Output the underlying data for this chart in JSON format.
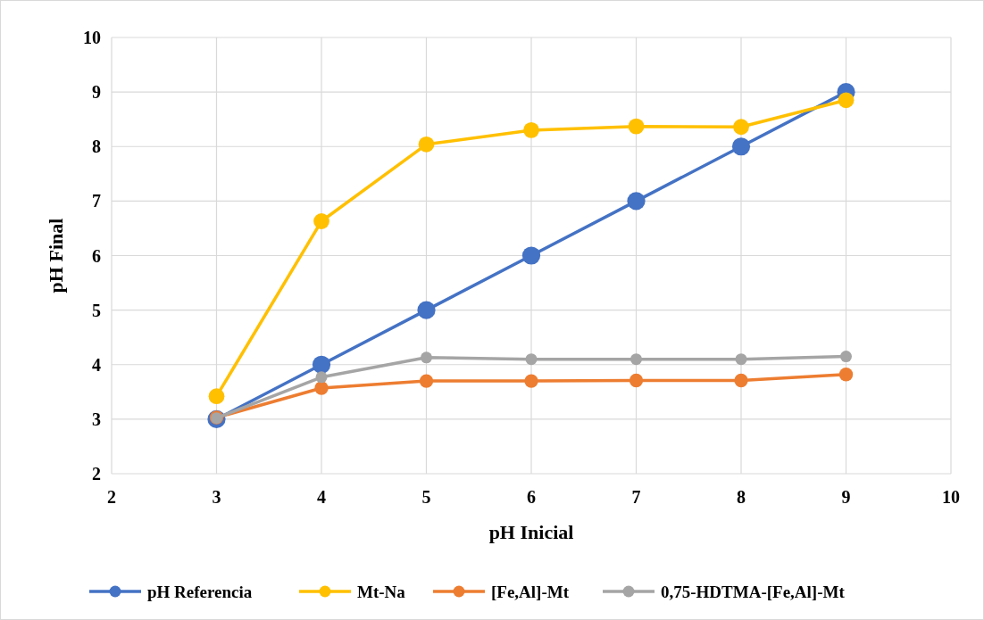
{
  "chart_data": {
    "type": "line",
    "xlabel": "pH Inicial",
    "ylabel": "pH Final",
    "x": [
      3,
      4,
      5,
      6,
      7,
      8,
      9
    ],
    "xlim": [
      2,
      10
    ],
    "xticks": [
      2,
      3,
      4,
      5,
      6,
      7,
      8,
      9,
      10
    ],
    "ylim": [
      2,
      10
    ],
    "yticks": [
      2,
      3,
      4,
      5,
      6,
      7,
      8,
      9,
      10
    ],
    "grid": true,
    "legend": "bottom",
    "marker": "circle",
    "line_style": "solid",
    "series": [
      {
        "name": "pH Referencia",
        "color": "#4472c4",
        "values": [
          3,
          4,
          5,
          6,
          7,
          8,
          9
        ]
      },
      {
        "name": "Mt-Na",
        "color": "#ffc000",
        "values": [
          3.42,
          6.63,
          8.04,
          8.3,
          8.37,
          8.36,
          8.85
        ]
      },
      {
        "name": "[Fe,Al]-Mt",
        "color": "#ed7d31",
        "values": [
          3.03,
          3.57,
          3.7,
          3.7,
          3.71,
          3.71,
          3.82
        ]
      },
      {
        "name": "0,75-HDTMA-[Fe,Al]-Mt",
        "color": "#a5a5a5",
        "values": [
          3.02,
          3.77,
          4.13,
          4.1,
          4.1,
          4.1,
          4.15
        ]
      }
    ]
  }
}
